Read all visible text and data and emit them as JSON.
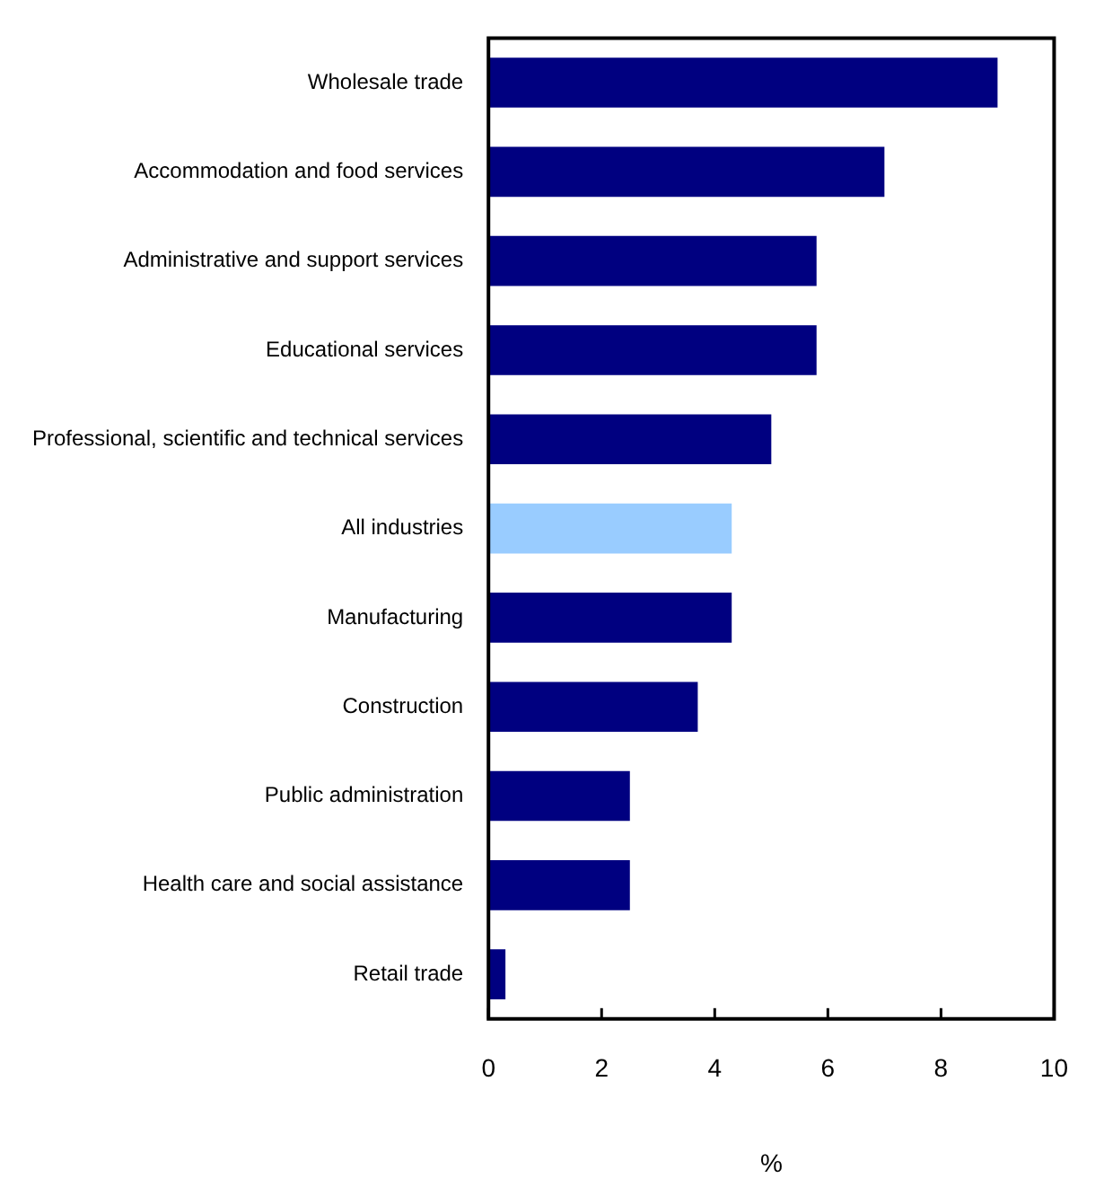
{
  "chart_data": {
    "type": "bar",
    "orientation": "horizontal",
    "xlabel": "%",
    "categories": [
      "Wholesale trade",
      "Accommodation and food services",
      "Administrative and support services",
      "Educational services",
      "Professional, scientific and technical services",
      "All industries",
      "Manufacturing",
      "Construction",
      "Public administration",
      "Health care and social assistance",
      "Retail trade"
    ],
    "values": [
      9.0,
      7.0,
      5.8,
      5.8,
      5.0,
      4.3,
      4.3,
      3.7,
      2.5,
      2.5,
      0.3
    ],
    "colors": [
      "#000080",
      "#000080",
      "#000080",
      "#000080",
      "#000080",
      "#99ccff",
      "#000080",
      "#000080",
      "#000080",
      "#000080",
      "#000080"
    ],
    "xlim": [
      0,
      10
    ],
    "xticks": [
      0,
      2,
      4,
      6,
      8,
      10
    ],
    "grid": false,
    "legend": false
  }
}
